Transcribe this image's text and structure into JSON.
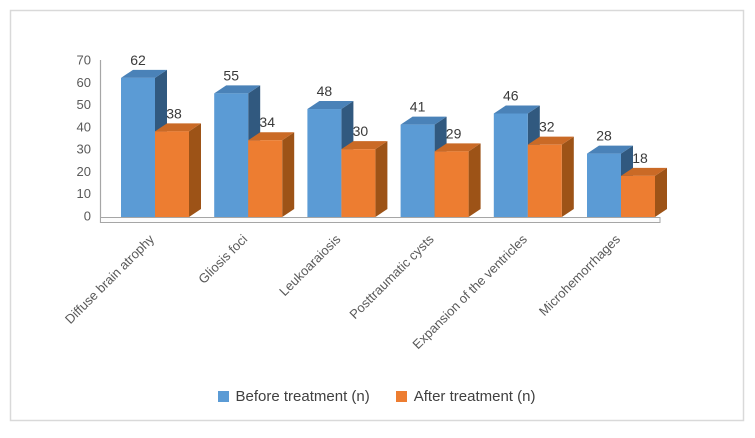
{
  "chart_data": {
    "type": "bar",
    "style": "3d-clustered",
    "title": "",
    "xlabel": "",
    "ylabel": "",
    "categories": [
      "Diffuse brain atrophy",
      "Gliosis foci",
      "Leukoaraiosis",
      "Posttraumatic cysts",
      "Expansion of the ventricles",
      "Microhemorrhages"
    ],
    "series": [
      {
        "name": "Before treatment (n)",
        "values": [
          62,
          55,
          48,
          41,
          46,
          28
        ],
        "colors": {
          "front": "#5B9BD5",
          "top": "#4A82B8",
          "side": "#31597F"
        }
      },
      {
        "name": "After treatment (n)",
        "values": [
          38,
          34,
          30,
          29,
          32,
          18
        ],
        "colors": {
          "front": "#ED7D31",
          "top": "#CA6A26",
          "side": "#9D5317"
        }
      }
    ],
    "ylim": [
      0,
      70
    ],
    "ytick_step": 10,
    "yticks": [
      0,
      10,
      20,
      30,
      40,
      50,
      60,
      70
    ],
    "data_labels": true,
    "grid": false,
    "legend_position": "bottom",
    "colors": {
      "axis_text": "#595959",
      "data_label_text": "#3A3A3A",
      "legend_text": "#404040",
      "axis_line": "#A6A6A6",
      "frame_border": "#D9D9D9",
      "floor_fill": "#FCFCFC"
    }
  }
}
